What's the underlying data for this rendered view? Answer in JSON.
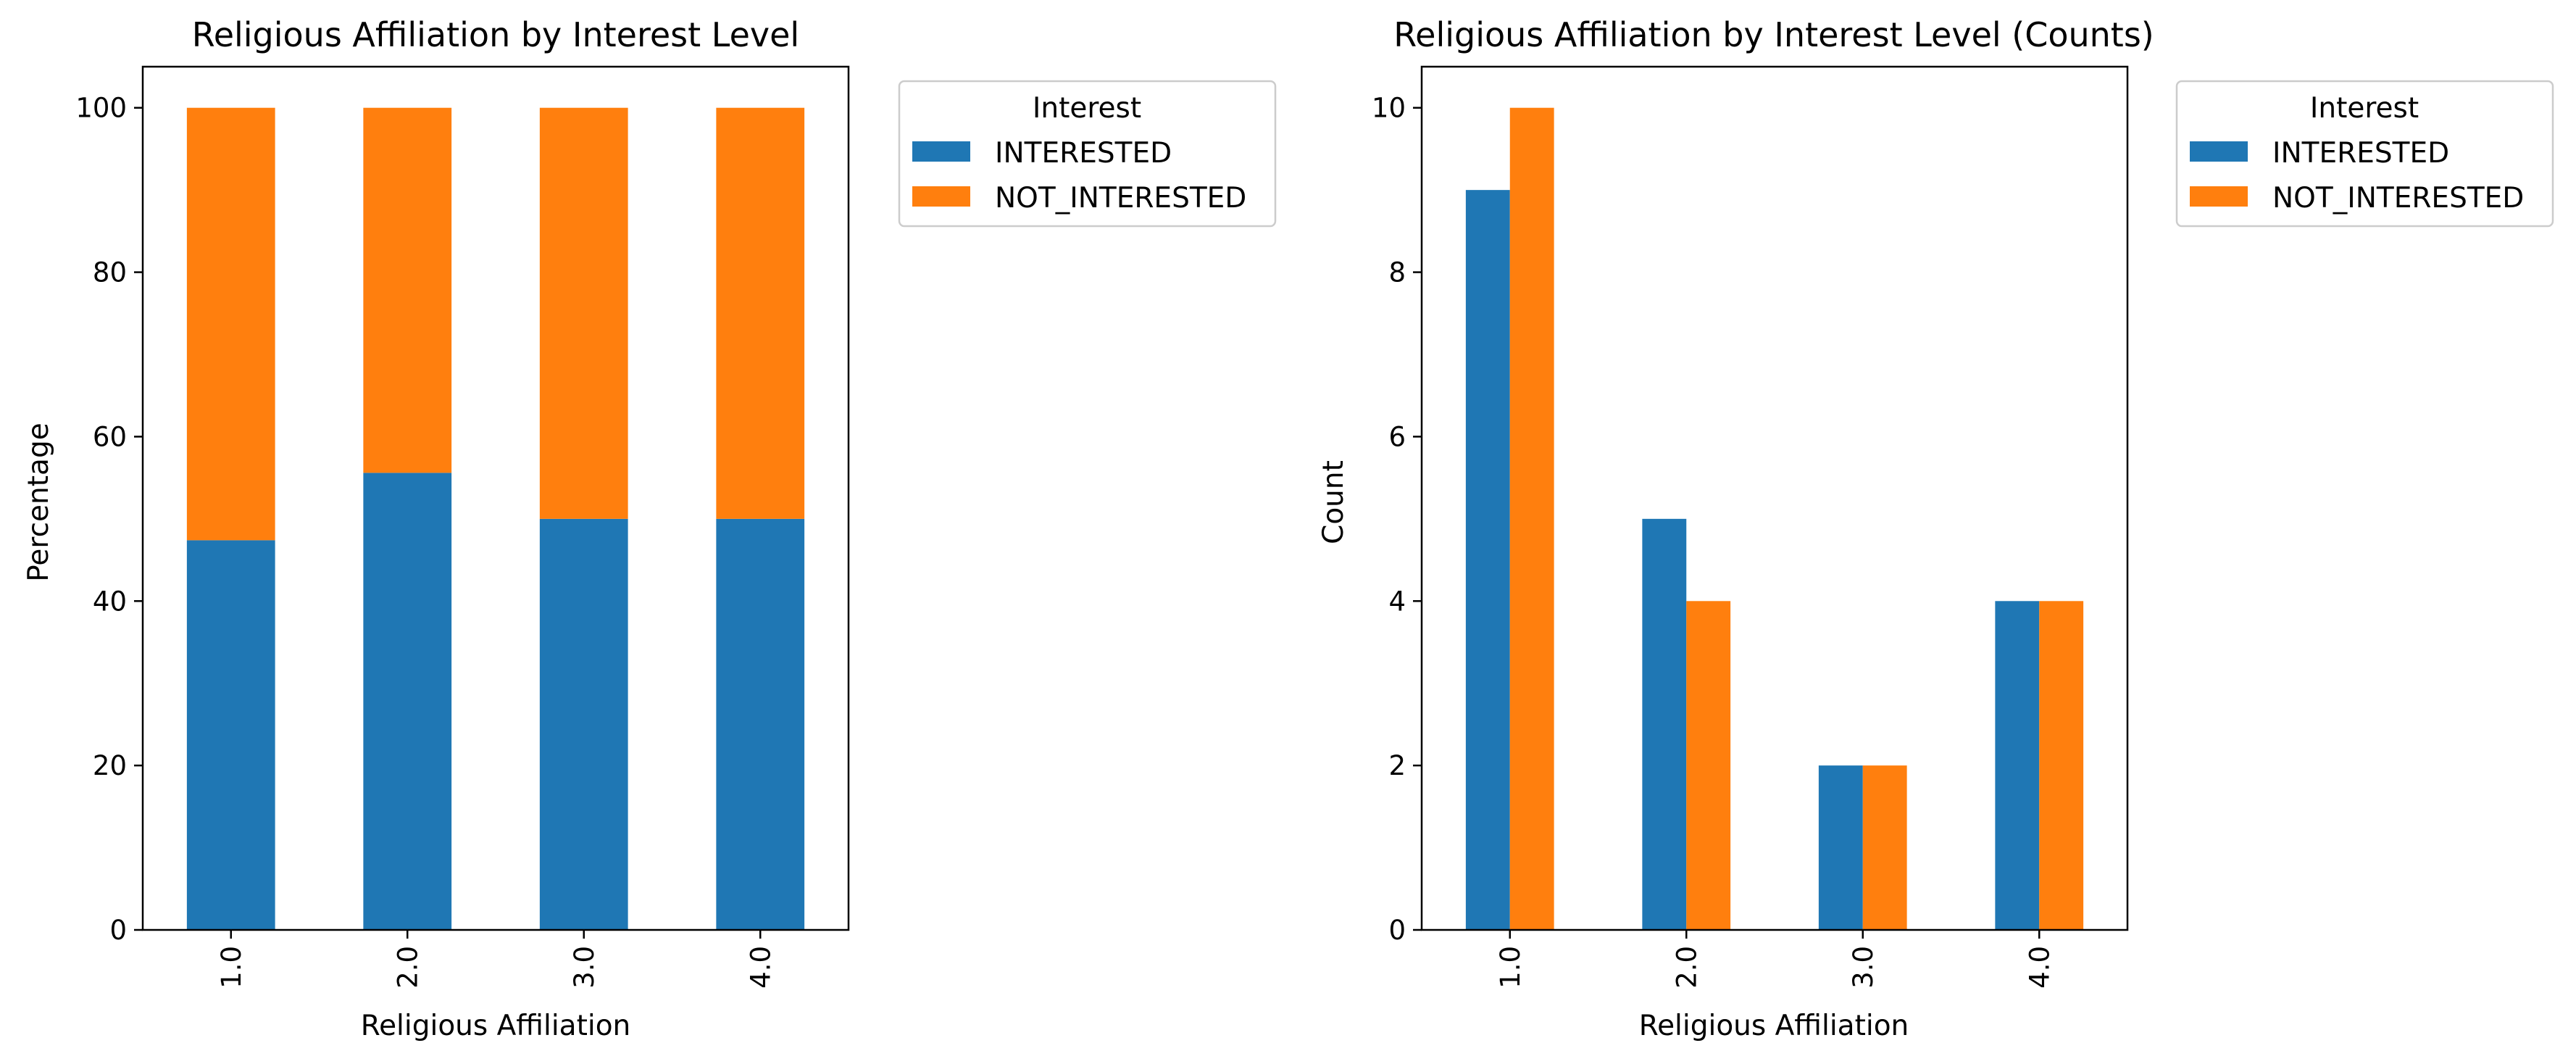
{
  "chart_data": [
    {
      "type": "bar",
      "stacked": true,
      "title": "Religious Affiliation by Interest Level",
      "xlabel": "Religious Affiliation",
      "ylabel": "Percentage",
      "categories": [
        "1.0",
        "2.0",
        "3.0",
        "4.0"
      ],
      "yticks": [
        "0",
        "20",
        "40",
        "60",
        "80",
        "100"
      ],
      "ylim": [
        0,
        105
      ],
      "grid": false,
      "legend": {
        "title": "Interest",
        "placement": "outside-top-right"
      },
      "series": [
        {
          "name": "INTERESTED",
          "color": "#1f77b4",
          "values": [
            47.4,
            55.6,
            50.0,
            50.0
          ]
        },
        {
          "name": "NOT_INTERESTED",
          "color": "#ff7f0e",
          "values": [
            52.6,
            44.4,
            50.0,
            50.0
          ]
        }
      ]
    },
    {
      "type": "bar",
      "stacked": false,
      "title": "Religious Affiliation by Interest Level (Counts)",
      "xlabel": "Religious Affiliation",
      "ylabel": "Count",
      "categories": [
        "1.0",
        "2.0",
        "3.0",
        "4.0"
      ],
      "yticks": [
        "0",
        "2",
        "4",
        "6",
        "8",
        "10"
      ],
      "ylim": [
        0,
        10.5
      ],
      "grid": false,
      "legend": {
        "title": "Interest",
        "placement": "outside-top-right"
      },
      "series": [
        {
          "name": "INTERESTED",
          "color": "#1f77b4",
          "values": [
            9,
            5,
            2,
            4
          ]
        },
        {
          "name": "NOT_INTERESTED",
          "color": "#ff7f0e",
          "values": [
            10,
            4,
            2,
            4
          ]
        }
      ]
    }
  ]
}
